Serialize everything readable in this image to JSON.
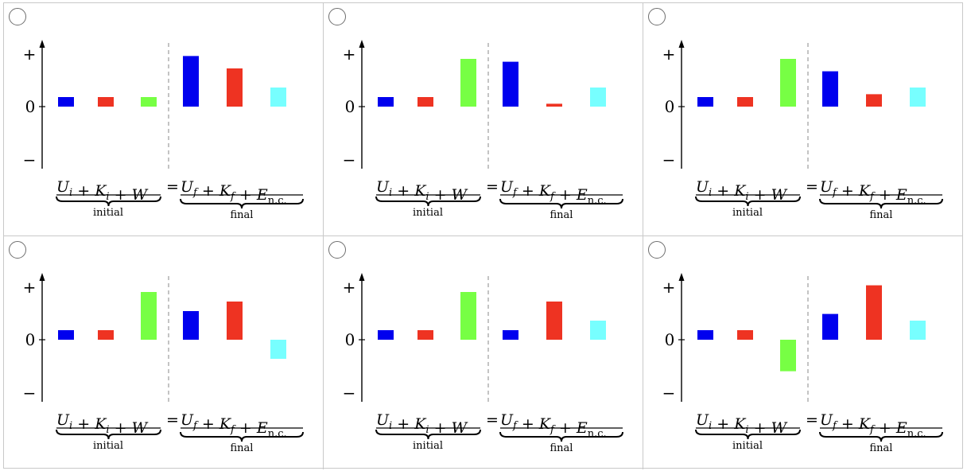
{
  "question": {
    "options": [
      {
        "label": "option-1",
        "chart_index": 0
      },
      {
        "label": "option-2",
        "chart_index": 1
      },
      {
        "label": "option-3",
        "chart_index": 2
      },
      {
        "label": "option-4",
        "chart_index": 3
      },
      {
        "label": "option-5",
        "chart_index": 4
      },
      {
        "label": "option-6",
        "chart_index": 5
      }
    ]
  },
  "colors": {
    "U_i": "#0000ee",
    "K_i": "#ee3322",
    "W": "#77ff44",
    "U_f": "#0000ee",
    "K_f": "#ee3322",
    "E_nc": "#77ffff"
  },
  "chart_data": [
    {
      "type": "bar",
      "categories": [
        "U_i",
        "K_i",
        "W",
        "U_f",
        "K_f",
        "E_nc"
      ],
      "values": [
        1,
        1,
        1,
        5.3,
        4,
        2
      ],
      "ylabels": [
        "+",
        "0",
        "−"
      ],
      "groups": [
        "initial",
        "final"
      ],
      "xlabel_initial": "U_i + K_i + W",
      "xlabel_equals": "=",
      "xlabel_final": "U_f + K_f + E_n.c."
    },
    {
      "type": "bar",
      "categories": [
        "U_i",
        "K_i",
        "W",
        "U_f",
        "K_f",
        "E_nc"
      ],
      "values": [
        1,
        1,
        5,
        4.7,
        0.3,
        2
      ],
      "ylabels": [
        "+",
        "0",
        "−"
      ],
      "groups": [
        "initial",
        "final"
      ],
      "xlabel_initial": "U_i + K_i + W",
      "xlabel_equals": "=",
      "xlabel_final": "U_f + K_f + E_n.c."
    },
    {
      "type": "bar",
      "categories": [
        "U_i",
        "K_i",
        "W",
        "U_f",
        "K_f",
        "E_nc"
      ],
      "values": [
        1,
        1,
        5,
        3.7,
        1.3,
        2
      ],
      "ylabels": [
        "+",
        "0",
        "−"
      ],
      "groups": [
        "initial",
        "final"
      ],
      "xlabel_initial": "U_i + K_i + W",
      "xlabel_equals": "=",
      "xlabel_final": "U_f + K_f + E_n.c."
    },
    {
      "type": "bar",
      "categories": [
        "U_i",
        "K_i",
        "W",
        "U_f",
        "K_f",
        "E_nc"
      ],
      "values": [
        1,
        1,
        5,
        3,
        4,
        -2
      ],
      "ylabels": [
        "+",
        "0",
        "−"
      ],
      "groups": [
        "initial",
        "final"
      ],
      "xlabel_initial": "U_i + K_i + W",
      "xlabel_equals": "=",
      "xlabel_final": "U_f + K_f + E_n.c."
    },
    {
      "type": "bar",
      "categories": [
        "U_i",
        "K_i",
        "W",
        "U_f",
        "K_f",
        "E_nc"
      ],
      "values": [
        1,
        1,
        5,
        1,
        4,
        2
      ],
      "ylabels": [
        "+",
        "0",
        "−"
      ],
      "groups": [
        "initial",
        "final"
      ],
      "xlabel_initial": "U_i + K_i + W",
      "xlabel_equals": "=",
      "xlabel_final": "U_f + K_f + E_n.c."
    },
    {
      "type": "bar",
      "categories": [
        "U_i",
        "K_i",
        "W",
        "U_f",
        "K_f",
        "E_nc"
      ],
      "values": [
        1,
        1,
        -3.3,
        2.7,
        5.7,
        2
      ],
      "ylabels": [
        "+",
        "0",
        "−"
      ],
      "groups": [
        "initial",
        "final"
      ],
      "xlabel_initial": "U_i + K_i + W",
      "xlabel_equals": "=",
      "xlabel_final": "U_f + K_f + E_n.c."
    }
  ]
}
